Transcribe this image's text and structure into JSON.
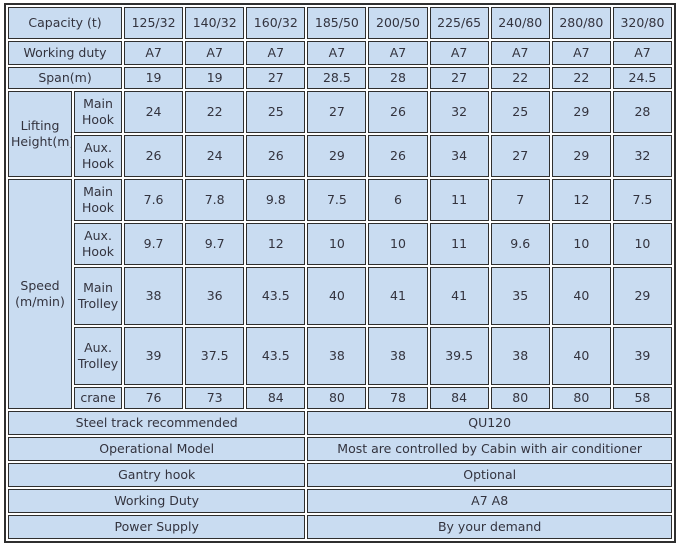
{
  "colors": {
    "cell_bg": "#c9dcf1",
    "border": "#2f2f2f",
    "text": "#33333e",
    "table_gap": "#ffffff"
  },
  "chart_data": {
    "type": "table",
    "capacity": {
      "label": "Capacity (t)",
      "values": [
        "125/32",
        "140/32",
        "160/32",
        "185/50",
        "200/50",
        "225/65",
        "240/80",
        "280/80",
        "320/80"
      ]
    },
    "working_duty": {
      "label": "Working duty",
      "values": [
        "A7",
        "A7",
        "A7",
        "A7",
        "A7",
        "A7",
        "A7",
        "A7",
        "A7"
      ]
    },
    "span": {
      "label": "Span(m)",
      "values": [
        "19",
        "19",
        "27",
        "28.5",
        "28",
        "27",
        "22",
        "22",
        "24.5"
      ]
    },
    "lifting_height": {
      "label": "Lifting Height(m)",
      "rows": [
        {
          "label": "Main Hook",
          "values": [
            "24",
            "22",
            "25",
            "27",
            "26",
            "32",
            "25",
            "29",
            "28"
          ]
        },
        {
          "label": "Aux. Hook",
          "values": [
            "26",
            "24",
            "26",
            "29",
            "26",
            "34",
            "27",
            "29",
            "32"
          ]
        }
      ]
    },
    "speed": {
      "label": "Speed (m/min)",
      "rows": [
        {
          "label": "Main Hook",
          "values": [
            "7.6",
            "7.8",
            "9.8",
            "7.5",
            "6",
            "11",
            "7",
            "12",
            "7.5"
          ]
        },
        {
          "label": "Aux. Hook",
          "values": [
            "9.7",
            "9.7",
            "12",
            "10",
            "10",
            "11",
            "9.6",
            "10",
            "10"
          ]
        },
        {
          "label": "Main Trolley",
          "values": [
            "38",
            "36",
            "43.5",
            "40",
            "41",
            "41",
            "35",
            "40",
            "29"
          ]
        },
        {
          "label": "Aux. Trolley",
          "values": [
            "39",
            "37.5",
            "43.5",
            "38",
            "38",
            "39.5",
            "38",
            "40",
            "39"
          ]
        },
        {
          "label": "crane",
          "values": [
            "76",
            "73",
            "84",
            "80",
            "78",
            "84",
            "80",
            "80",
            "58"
          ]
        }
      ]
    },
    "footer": [
      {
        "label": "Steel track recommended",
        "value": "QU120"
      },
      {
        "label": "Operational Model",
        "value": "Most are controlled by Cabin with air conditioner"
      },
      {
        "label": "Gantry hook",
        "value": "Optional"
      },
      {
        "label": "Working Duty",
        "value": "A7 A8"
      },
      {
        "label": "Power Supply",
        "value": "By your demand"
      }
    ]
  }
}
